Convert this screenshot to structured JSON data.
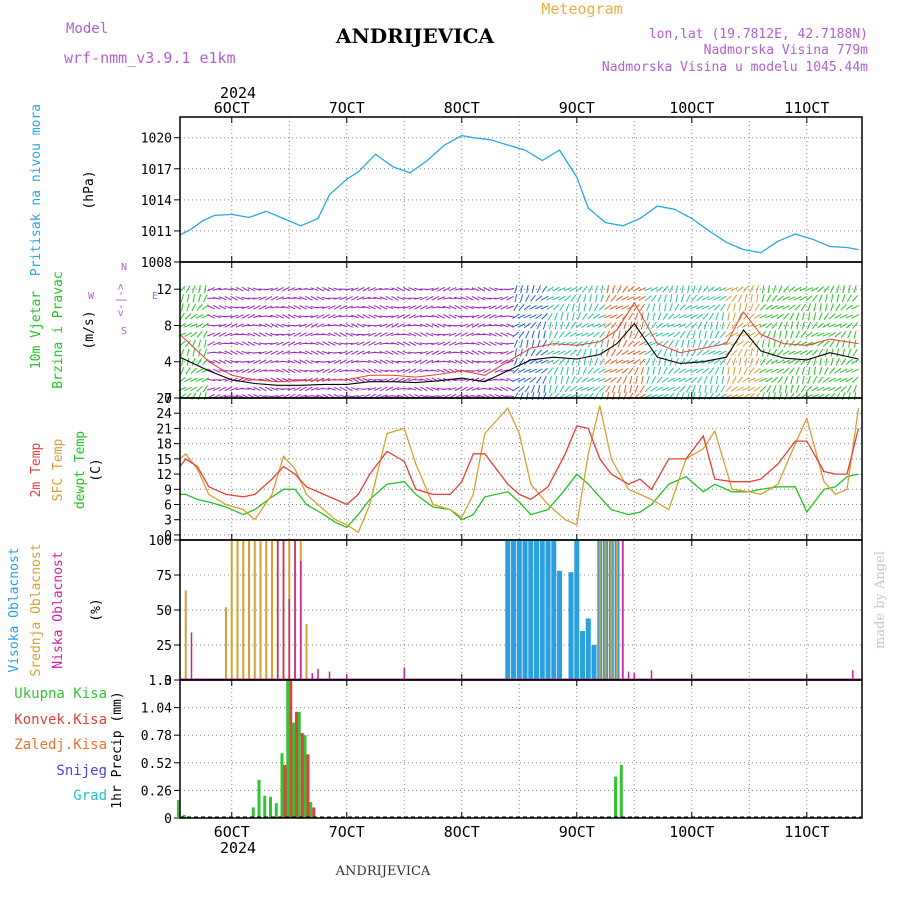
{
  "header": {
    "model_label": "Model",
    "model_name": "wrf-nmm_v3.9.1 e1km",
    "title": "ANDRIJEVICA",
    "subtitle": "Meteogram",
    "lonlat": "lon,lat (19.7812E, 42.7188N)",
    "elevation": "Nadmorska Visina 779m",
    "model_elevation": "Nadmorska Visina u modelu 1045.44m",
    "year_top": "2024",
    "year_bottom": "2024",
    "footer_station": "ANDRIJEVICA",
    "watermark": "made by Angel"
  },
  "colors": {
    "pressure": "#2aa8e0",
    "wind_label": "#22c422",
    "temp2m": "#e8403a",
    "sfc_temp": "#d8a033",
    "dewpt": "#22c422",
    "high_cloud": "#2aa0e0",
    "mid_cloud": "#d8a033",
    "low_cloud": "#d020a0",
    "total_precip": "#33c433",
    "conv_precip": "#e04040",
    "frozen_precip": "#f07030",
    "snow": "#4444dd",
    "hail": "#22c4c4",
    "label_purple": "#b060d0",
    "title_orange": "#e8b040",
    "wind_speed_line": "#000000",
    "wind_gust_line": "#e84030"
  },
  "chart_data": [
    {
      "type": "line",
      "panel": "pressure",
      "ylabel": "Pritisak na nivou mora",
      "yunit": "(hPa)",
      "ylim": [
        1008,
        1022
      ],
      "yticks": [
        1008,
        1011,
        1014,
        1017,
        1020
      ],
      "grid": true,
      "x": [
        5.55,
        5.65,
        5.75,
        5.85,
        6.0,
        6.15,
        6.3,
        6.45,
        6.6,
        6.75,
        6.85,
        7.0,
        7.1,
        7.25,
        7.4,
        7.55,
        7.7,
        7.85,
        8.0,
        8.1,
        8.25,
        8.4,
        8.55,
        8.7,
        8.85,
        9.0,
        9.1,
        9.25,
        9.4,
        9.55,
        9.7,
        9.85,
        10.0,
        10.15,
        10.3,
        10.45,
        10.6,
        10.75,
        10.9,
        11.05,
        11.2,
        11.35,
        11.45
      ],
      "series": [
        {
          "name": "",
          "values": [
            1010.6,
            1011.2,
            1012.0,
            1012.5,
            1012.6,
            1012.3,
            1012.9,
            1012.2,
            1011.5,
            1012.2,
            1014.5,
            1016.0,
            1016.7,
            1018.4,
            1017.2,
            1016.6,
            1017.8,
            1019.3,
            1020.2,
            1020.0,
            1019.8,
            1019.3,
            1018.8,
            1017.8,
            1018.8,
            1016.2,
            1013.2,
            1011.8,
            1011.5,
            1012.2,
            1013.4,
            1013.1,
            1012.2,
            1011.0,
            1009.9,
            1009.2,
            1008.9,
            1010.0,
            1010.7,
            1010.2,
            1009.5,
            1009.4,
            1009.2
          ]
        }
      ]
    },
    {
      "type": "line",
      "panel": "wind",
      "ylabel": "10m Vjetar",
      "ylabel2": "Brzina i Pravac",
      "yunit": "(m/s)",
      "compass_labels": [
        "N",
        "E",
        "S",
        "W"
      ],
      "compass_arrows": "<-|->",
      "ylim": [
        0,
        15
      ],
      "yticks": [
        0,
        4,
        8,
        12
      ],
      "grid": true,
      "x": [
        5.55,
        5.8,
        6.0,
        6.2,
        6.4,
        6.6,
        6.8,
        7.0,
        7.2,
        7.4,
        7.6,
        7.8,
        8.0,
        8.2,
        8.4,
        8.6,
        8.8,
        9.0,
        9.2,
        9.35,
        9.5,
        9.7,
        9.9,
        10.1,
        10.3,
        10.45,
        10.6,
        10.8,
        11.0,
        11.2,
        11.45
      ],
      "series": [
        {
          "name": "speed",
          "values": [
            4.5,
            3.0,
            2.0,
            1.6,
            1.4,
            1.4,
            1.5,
            1.5,
            1.8,
            1.8,
            1.7,
            1.9,
            2.2,
            1.8,
            3.0,
            4.2,
            4.5,
            4.3,
            4.8,
            6.0,
            8.2,
            4.5,
            3.8,
            4.0,
            4.5,
            7.5,
            5.2,
            4.4,
            4.2,
            5.0,
            4.3
          ]
        },
        {
          "name": "gust",
          "values": [
            7.0,
            4.0,
            2.5,
            2.0,
            1.8,
            1.9,
            2.0,
            2.0,
            2.5,
            2.5,
            2.3,
            2.6,
            3.0,
            2.5,
            4.0,
            5.5,
            6.0,
            5.8,
            6.2,
            7.5,
            10.5,
            6.0,
            5.0,
            5.5,
            6.0,
            9.5,
            7.0,
            6.0,
            5.8,
            6.5,
            6.0
          ]
        }
      ],
      "arrow_speed_bands": [
        {
          "from": 5.55,
          "to": 5.8,
          "color": "#22c422"
        },
        {
          "from": 5.8,
          "to": 8.45,
          "color": "#a020c0"
        },
        {
          "from": 8.45,
          "to": 8.75,
          "color": "#2060e0"
        },
        {
          "from": 8.75,
          "to": 9.25,
          "color": "#22c4a0"
        },
        {
          "from": 9.25,
          "to": 9.6,
          "color": "#e86020"
        },
        {
          "from": 9.6,
          "to": 10.3,
          "color": "#22c4a0"
        },
        {
          "from": 10.3,
          "to": 10.6,
          "color": "#d8a033"
        },
        {
          "from": 10.6,
          "to": 11.45,
          "color": "#22c422"
        }
      ]
    },
    {
      "type": "line",
      "panel": "temperature",
      "ylabel": "2m Temp",
      "ylabel2": "SFC Temp",
      "ylabel3": "dewpt Temp",
      "yunit": "(C)",
      "ylim": [
        -1,
        27
      ],
      "yticks": [
        0,
        3,
        6,
        9,
        12,
        15,
        18,
        21,
        24,
        27
      ],
      "grid": true,
      "x": [
        5.55,
        5.6,
        5.7,
        5.8,
        5.95,
        6.1,
        6.2,
        6.35,
        6.45,
        6.55,
        6.65,
        6.8,
        6.9,
        7.0,
        7.1,
        7.2,
        7.35,
        7.5,
        7.6,
        7.75,
        7.9,
        8.0,
        8.1,
        8.2,
        8.4,
        8.5,
        8.6,
        8.75,
        8.9,
        9.0,
        9.1,
        9.2,
        9.3,
        9.45,
        9.55,
        9.65,
        9.8,
        9.95,
        10.1,
        10.2,
        10.35,
        10.5,
        10.6,
        10.75,
        10.9,
        11.0,
        11.15,
        11.25,
        11.35,
        11.45
      ],
      "series": [
        {
          "name": "2m Temp",
          "values": [
            13.5,
            15.0,
            13.5,
            9.5,
            8.0,
            7.5,
            8.0,
            11.0,
            13.5,
            12.0,
            9.5,
            8.0,
            7.0,
            6.0,
            8.0,
            12.0,
            16.5,
            14.5,
            9.0,
            8.0,
            8.0,
            10.5,
            16.0,
            16.0,
            10.0,
            8.0,
            7.0,
            9.5,
            16.0,
            21.5,
            21.0,
            15.0,
            12.0,
            10.0,
            11.0,
            9.0,
            15.0,
            15.0,
            19.5,
            11.0,
            10.5,
            10.5,
            11.0,
            14.0,
            18.5,
            18.5,
            12.5,
            12.0,
            12.0,
            21.0
          ]
        },
        {
          "name": "SFC Temp",
          "values": [
            15.0,
            16.0,
            13.0,
            8.0,
            6.0,
            5.0,
            3.0,
            8.0,
            15.5,
            13.0,
            8.0,
            5.0,
            3.0,
            2.0,
            0.5,
            6.0,
            20.0,
            21.0,
            14.0,
            6.0,
            5.0,
            3.5,
            8.0,
            20.0,
            25.0,
            20.0,
            10.0,
            6.0,
            3.0,
            2.0,
            16.0,
            25.5,
            15.0,
            9.0,
            8.0,
            7.0,
            5.0,
            15.0,
            17.0,
            20.5,
            9.0,
            8.5,
            8.0,
            10.0,
            18.0,
            23.0,
            10.5,
            8.0,
            9.0,
            25.0
          ]
        },
        {
          "name": "dewpt Temp",
          "values": [
            8.0,
            8.0,
            7.0,
            6.5,
            5.5,
            4.0,
            5.0,
            7.5,
            9.0,
            9.0,
            6.0,
            4.0,
            2.5,
            1.5,
            4.0,
            7.0,
            10.0,
            10.5,
            8.0,
            5.5,
            5.0,
            3.0,
            4.0,
            7.5,
            8.5,
            6.5,
            4.0,
            5.0,
            9.0,
            12.0,
            10.0,
            7.5,
            5.0,
            4.0,
            4.5,
            6.0,
            10.0,
            11.5,
            8.5,
            10.0,
            8.5,
            8.5,
            9.0,
            9.5,
            9.5,
            4.5,
            9.0,
            9.5,
            11.5,
            12.0
          ]
        }
      ]
    },
    {
      "type": "bar",
      "panel": "clouds",
      "ylabel": "Visoka Oblacnost",
      "ylabel2": "Srednja Oblacnost",
      "ylabel3": "Niska Oblacnost",
      "yunit": "(%)",
      "ylim": [
        0,
        100
      ],
      "yticks": [
        0,
        25,
        50,
        75,
        100
      ],
      "grid": true,
      "series": [
        {
          "name": "Visoka Oblacnost",
          "x": [
            8.4,
            8.45,
            8.5,
            8.55,
            8.6,
            8.65,
            8.7,
            8.75,
            8.8,
            8.85,
            8.9,
            8.95,
            9.0,
            9.05,
            9.1,
            9.15,
            9.2,
            9.25,
            9.3,
            9.35
          ],
          "values": [
            100,
            100,
            100,
            100,
            100,
            100,
            100,
            100,
            100,
            78,
            0,
            77,
            100,
            35,
            44,
            25,
            100,
            100,
            100,
            100
          ]
        },
        {
          "name": "Srednja Oblacnost",
          "x": [
            5.6,
            5.95,
            6.0,
            6.05,
            6.1,
            6.15,
            6.2,
            6.25,
            6.3,
            6.35,
            6.4,
            6.45,
            6.5,
            6.55,
            6.6,
            6.65,
            9.2,
            9.25,
            9.3,
            9.35,
            9.4
          ],
          "values": [
            64,
            52,
            100,
            100,
            100,
            100,
            100,
            100,
            100,
            100,
            100,
            100,
            100,
            100,
            100,
            40,
            100,
            100,
            100,
            100,
            100
          ]
        },
        {
          "name": "Niska Oblacnost",
          "x": [
            5.65,
            6.4,
            6.45,
            6.5,
            6.55,
            6.6,
            6.7,
            6.75,
            6.85,
            7.0,
            7.5,
            9.4,
            9.45,
            9.5,
            9.65,
            11.4
          ],
          "values": [
            34,
            100,
            100,
            58,
            100,
            85,
            5,
            8,
            6,
            4,
            9,
            100,
            6,
            5,
            7,
            7
          ]
        }
      ]
    },
    {
      "type": "bar",
      "panel": "precipitation",
      "ylabel": "1hr Precip",
      "yunit": "(mm)",
      "legend": [
        "Ukupna Kisa",
        "Konvek.Kisa",
        "Zaledj.Kisa",
        "Snijeg",
        "Grad"
      ],
      "ylim": [
        0,
        1.3
      ],
      "yticks": [
        0,
        0.26,
        0.52,
        0.78,
        1.04,
        1.3
      ],
      "grid": true,
      "series": [
        {
          "name": "Ukupna Kisa",
          "x": [
            5.55,
            5.6,
            6.2,
            6.25,
            6.3,
            6.35,
            6.4,
            6.45,
            6.5,
            6.55,
            6.6,
            6.65,
            6.7,
            9.35,
            9.4
          ],
          "values": [
            0.17,
            0.03,
            0.1,
            0.36,
            0.21,
            0.2,
            0.14,
            0.61,
            1.3,
            0.9,
            1.0,
            0.78,
            0.15,
            0.39,
            0.5
          ]
        },
        {
          "name": "Konvek.Kisa",
          "x": [
            6.45,
            6.5,
            6.55,
            6.6,
            6.65,
            6.7
          ],
          "values": [
            0.5,
            1.3,
            1.0,
            0.8,
            0.6,
            0.1
          ]
        }
      ],
      "xticks": [
        "6OCT",
        "7OCT",
        "8OCT",
        "9OCT",
        "10OCT",
        "11OCT"
      ]
    }
  ]
}
